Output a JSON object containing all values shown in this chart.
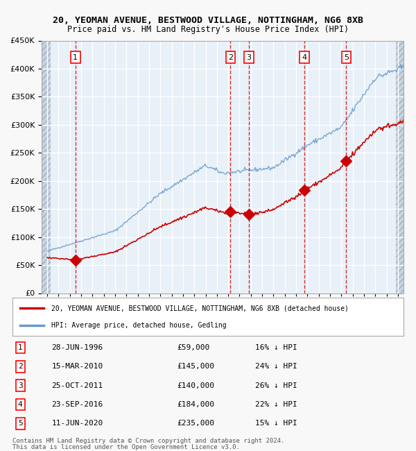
{
  "title1": "20, YEOMAN AVENUE, BESTWOOD VILLAGE, NOTTINGHAM, NG6 8XB",
  "title2": "Price paid vs. HM Land Registry's House Price Index (HPI)",
  "legend_red": "20, YEOMAN AVENUE, BESTWOOD VILLAGE, NOTTINGHAM, NG6 8XB (detached house)",
  "legend_blue": "HPI: Average price, detached house, Gedling",
  "footer1": "Contains HM Land Registry data © Crown copyright and database right 2024.",
  "footer2": "This data is licensed under the Open Government Licence v3.0.",
  "sales": [
    {
      "num": 1,
      "date_label": "28-JUN-1996",
      "price": 59000,
      "pct": "16% ↓ HPI",
      "year": 1996.49
    },
    {
      "num": 2,
      "date_label": "15-MAR-2010",
      "price": 145000,
      "pct": "24% ↓ HPI",
      "year": 2010.2
    },
    {
      "num": 3,
      "date_label": "25-OCT-2011",
      "price": 140000,
      "pct": "26% ↓ HPI",
      "year": 2011.81
    },
    {
      "num": 4,
      "date_label": "23-SEP-2016",
      "price": 184000,
      "pct": "22% ↓ HPI",
      "year": 2016.73
    },
    {
      "num": 5,
      "date_label": "11-JUN-2020",
      "price": 235000,
      "pct": "15% ↓ HPI",
      "year": 2020.44
    }
  ],
  "ylim": [
    0,
    450000
  ],
  "yticks": [
    0,
    50000,
    100000,
    150000,
    200000,
    250000,
    300000,
    350000,
    400000,
    450000
  ],
  "xlim": [
    1993.5,
    2025.5
  ],
  "bg_color": "#ddeeff",
  "plot_bg": "#e8f0f8",
  "hatch_color": "#c0c8d8",
  "grid_color": "#ffffff",
  "red_color": "#cc0000",
  "blue_color": "#6699cc",
  "sale_marker_color": "#cc0000",
  "dashed_color": "#cc0000"
}
